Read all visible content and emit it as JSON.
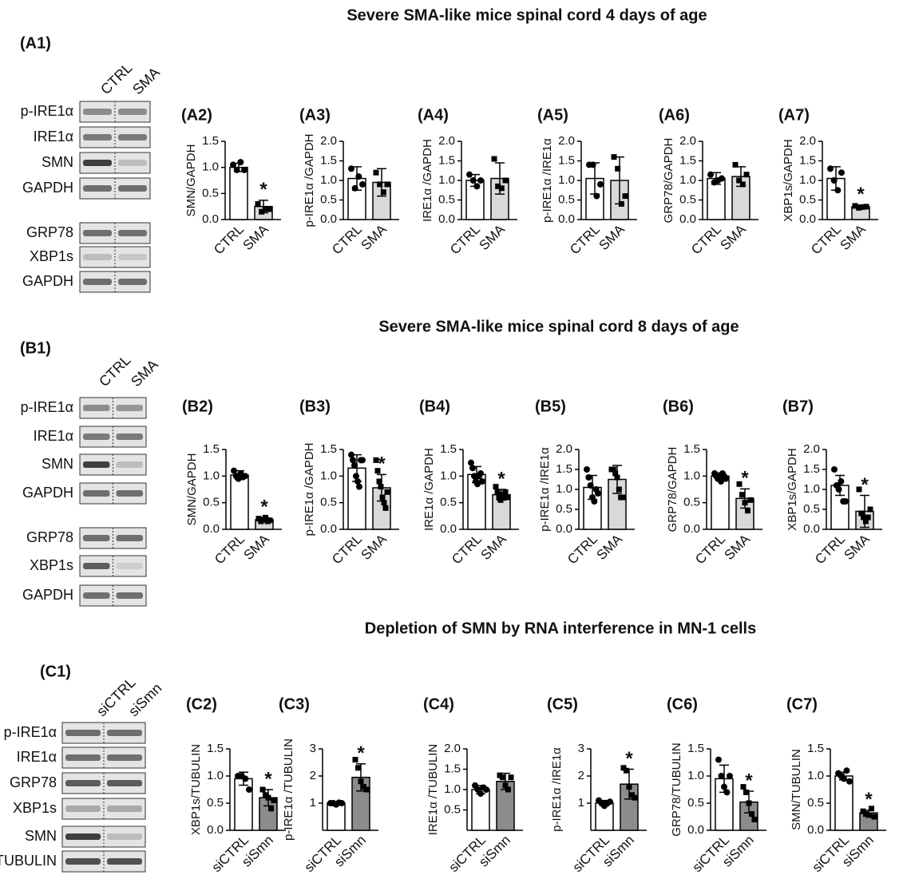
{
  "sections": [
    {
      "title": "Severe SMA-like mice spinal cord 4 days of age",
      "blot": {
        "label": "(A1)",
        "lanes": [
          "CTRL",
          "SMA"
        ],
        "rows": [
          "p-IRE1α",
          "IRE1α",
          "SMN",
          "GAPDH",
          "GRP78",
          "XBP1s",
          "GAPDH"
        ]
      }
    },
    {
      "title": "Severe SMA-like mice spinal cord 8 days of age",
      "blot": {
        "label": "(B1)",
        "lanes": [
          "CTRL",
          "SMA"
        ],
        "rows": [
          "p-IRE1α",
          "IRE1α",
          "SMN",
          "GAPDH",
          "GRP78",
          "XBP1s",
          "GAPDH"
        ]
      }
    },
    {
      "title": "Depletion of SMN by RNA interference in MN-1 cells",
      "blot": {
        "label": "(C1)",
        "lanes": [
          "siCTRL",
          "siSmn"
        ],
        "rows": [
          "p-IRE1α",
          "IRE1α",
          "GRP78",
          "XBP1s",
          "SMN",
          "TUBULIN"
        ]
      }
    }
  ],
  "chart_data": [
    {
      "type": "bar",
      "label": "(A2)",
      "ylabel": "SMN/GAPDH",
      "categories": [
        "CTRL",
        "SMA"
      ],
      "values": [
        1.0,
        0.25
      ],
      "errors": [
        0.08,
        0.12
      ],
      "points": [
        [
          1.05,
          0.95,
          1.1,
          0.95
        ],
        [
          0.3,
          0.15,
          0.2,
          0.2
        ]
      ],
      "colors": [
        "#ffffff",
        "#d9d9d9"
      ],
      "significance": [
        null,
        "*"
      ],
      "ylim": [
        0,
        1.5
      ],
      "yticks": [
        {
          "value": 0,
          "label": "0.0"
        },
        0.5,
        {
          "value": 1,
          "label": "1.0"
        },
        1.5
      ]
    },
    {
      "type": "bar",
      "label": "(A3)",
      "ylabel": "p-IRE1α /GAPDH",
      "categories": [
        "CTRL",
        "SMA"
      ],
      "values": [
        1.05,
        0.95
      ],
      "errors": [
        0.3,
        0.35
      ],
      "points": [
        [
          1.3,
          0.8,
          1.1,
          0.9
        ],
        [
          1.2,
          0.9,
          0.7,
          0.9
        ]
      ],
      "colors": [
        "#ffffff",
        "#d9d9d9"
      ],
      "ylim": [
        0,
        2
      ],
      "yticks": [
        {
          "value": 0,
          "label": "0.0"
        },
        0.5,
        {
          "value": 1,
          "label": "1.0"
        },
        1.5,
        {
          "value": 2,
          "label": "2.0"
        }
      ]
    },
    {
      "type": "bar",
      "label": "(A4)",
      "ylabel": "IRE1α /GAPDH",
      "categories": [
        "CTRL",
        "SMA"
      ],
      "values": [
        1.0,
        1.05
      ],
      "errors": [
        0.15,
        0.4
      ],
      "points": [
        [
          1.15,
          1.0,
          0.85,
          1.0
        ],
        [
          1.55,
          0.85,
          0.8,
          1.0
        ]
      ],
      "colors": [
        "#ffffff",
        "#d9d9d9"
      ],
      "ylim": [
        0,
        2
      ],
      "yticks": [
        {
          "value": 0,
          "label": "0.0"
        },
        0.5,
        {
          "value": 1,
          "label": "1.0"
        },
        1.5,
        {
          "value": 2,
          "label": "2.0"
        }
      ]
    },
    {
      "type": "bar",
      "label": "(A5)",
      "ylabel": "p-IRE1α /IRE1α",
      "categories": [
        "CTRL",
        "SMA"
      ],
      "values": [
        1.05,
        1.0
      ],
      "errors": [
        0.4,
        0.6
      ],
      "points": [
        [
          1.4,
          1.4,
          0.6,
          0.9
        ],
        [
          1.6,
          1.3,
          0.4,
          0.6
        ]
      ],
      "colors": [
        "#ffffff",
        "#d9d9d9"
      ],
      "ylim": [
        0,
        2
      ],
      "yticks": [
        {
          "value": 0,
          "label": "0.0"
        },
        0.5,
        {
          "value": 1,
          "label": "1.0"
        },
        1.5,
        {
          "value": 2,
          "label": "2.0"
        }
      ]
    },
    {
      "type": "bar",
      "label": "(A6)",
      "ylabel": "GRP78/GAPDH",
      "categories": [
        "CTRL",
        "SMA"
      ],
      "values": [
        1.05,
        1.1
      ],
      "errors": [
        0.15,
        0.25
      ],
      "points": [
        [
          1.15,
          0.95,
          1.0,
          1.05
        ],
        [
          1.4,
          1.0,
          0.9,
          1.15
        ]
      ],
      "colors": [
        "#ffffff",
        "#d9d9d9"
      ],
      "ylim": [
        0,
        2
      ],
      "yticks": [
        {
          "value": 0,
          "label": "0.0"
        },
        0.5,
        {
          "value": 1,
          "label": "1.0"
        },
        1.5,
        {
          "value": 2,
          "label": "2.0"
        }
      ]
    },
    {
      "type": "bar",
      "label": "(A7)",
      "ylabel": "XBP1s/GAPDH",
      "categories": [
        "CTRL",
        "SMA"
      ],
      "values": [
        1.05,
        0.33
      ],
      "errors": [
        0.3,
        0.04
      ],
      "points": [
        [
          1.3,
          1.0,
          0.75,
          1.2
        ],
        [
          0.35,
          0.3,
          0.32,
          0.33
        ]
      ],
      "colors": [
        "#ffffff",
        "#d9d9d9"
      ],
      "significance": [
        null,
        "*"
      ],
      "ylim": [
        0,
        2
      ],
      "yticks": [
        {
          "value": 0,
          "label": "0.0"
        },
        0.5,
        {
          "value": 1,
          "label": "1.0"
        },
        1.5,
        {
          "value": 2,
          "label": "2.0"
        }
      ]
    },
    {
      "type": "bar",
      "label": "(B2)",
      "ylabel": "SMN/GAPDH",
      "categories": [
        "CTRL",
        "SMA"
      ],
      "values": [
        1.02,
        0.18
      ],
      "errors": [
        0.08,
        0.04
      ],
      "points": [
        [
          1.1,
          1.0,
          0.95,
          1.05,
          0.98,
          1.0
        ],
        [
          0.2,
          0.15,
          0.18,
          0.22,
          0.15,
          0.17
        ]
      ],
      "colors": [
        "#ffffff",
        "#d9d9d9"
      ],
      "significance": [
        null,
        "*"
      ],
      "ylim": [
        0,
        1.5
      ],
      "yticks": [
        {
          "value": 0,
          "label": "0.0"
        },
        0.5,
        {
          "value": 1,
          "label": "1.0"
        },
        1.5
      ]
    },
    {
      "type": "bar",
      "label": "(B3)",
      "ylabel": "p-IRE1α /GAPDH",
      "categories": [
        "CTRL",
        "SMA"
      ],
      "values": [
        1.15,
        0.78
      ],
      "errors": [
        0.25,
        0.25
      ],
      "points": [
        [
          1.4,
          1.3,
          1.2,
          1.0,
          0.9,
          0.8,
          1.3,
          1.3
        ],
        [
          1.3,
          1.1,
          0.9,
          0.8,
          0.6,
          0.5,
          0.4,
          0.7
        ]
      ],
      "colors": [
        "#ffffff",
        "#d9d9d9"
      ],
      "significance": [
        null,
        "*"
      ],
      "ylim": [
        0,
        1.5
      ],
      "yticks": [
        {
          "value": 0,
          "label": "0.0"
        },
        0.5,
        {
          "value": 1,
          "label": "1.0"
        },
        1.5
      ]
    },
    {
      "type": "bar",
      "label": "(B4)",
      "ylabel": "IRE1α /GAPDH",
      "categories": [
        "CTRL",
        "SMA"
      ],
      "values": [
        1.03,
        0.65
      ],
      "errors": [
        0.15,
        0.1
      ],
      "points": [
        [
          1.25,
          1.15,
          1.0,
          0.9,
          0.85,
          1.0,
          1.05,
          0.9
        ],
        [
          0.8,
          0.7,
          0.6,
          0.55,
          0.65,
          0.6,
          0.7,
          0.6
        ]
      ],
      "colors": [
        "#ffffff",
        "#d9d9d9"
      ],
      "significance": [
        null,
        "*"
      ],
      "ylim": [
        0,
        1.5
      ],
      "yticks": [
        {
          "value": 0,
          "label": "0.0"
        },
        0.5,
        {
          "value": 1,
          "label": "1.0"
        },
        1.5
      ]
    },
    {
      "type": "bar",
      "label": "(B5)",
      "ylabel": "p-IRE1α /IRE1α",
      "categories": [
        "CTRL",
        "SMA"
      ],
      "values": [
        1.05,
        1.25
      ],
      "errors": [
        0.3,
        0.35
      ],
      "points": [
        [
          1.5,
          1.3,
          1.1,
          0.8,
          0.7,
          1.0,
          0.9
        ],
        [
          1.5,
          1.5,
          1.4,
          1.3,
          1.0,
          0.8,
          0.8
        ]
      ],
      "colors": [
        "#ffffff",
        "#d9d9d9"
      ],
      "ylim": [
        0,
        2
      ],
      "yticks": [
        {
          "value": 0,
          "label": "0.0"
        },
        0.5,
        {
          "value": 1,
          "label": "1.0"
        },
        1.5,
        {
          "value": 2,
          "label": "2.0"
        }
      ]
    },
    {
      "type": "bar",
      "label": "(B6)",
      "ylabel": "GRP78/GAPDH",
      "categories": [
        "CTRL",
        "SMA"
      ],
      "values": [
        1.0,
        0.58
      ],
      "errors": [
        0.06,
        0.18
      ],
      "points": [
        [
          1.05,
          1.0,
          0.95,
          1.0,
          0.9,
          1.05,
          1.0,
          0.95
        ],
        [
          0.85,
          0.65,
          0.5,
          0.35,
          0.55
        ]
      ],
      "colors": [
        "#ffffff",
        "#d9d9d9"
      ],
      "significance": [
        null,
        "*"
      ],
      "ylim": [
        0,
        1.5
      ],
      "yticks": [
        {
          "value": 0,
          "label": "0.0"
        },
        0.5,
        {
          "value": 1,
          "label": "1.0"
        },
        1.5
      ]
    },
    {
      "type": "bar",
      "label": "(B7)",
      "ylabel": "XBP1s/GAPDH",
      "categories": [
        "CTRL",
        "SMA"
      ],
      "values": [
        1.1,
        0.45
      ],
      "errors": [
        0.25,
        0.4
      ],
      "points": [
        [
          1.5,
          1.1,
          1.0,
          1.2,
          0.7,
          0.7
        ],
        [
          1.0,
          0.4,
          0.3,
          0.2,
          0.3,
          0.5
        ]
      ],
      "colors": [
        "#ffffff",
        "#d9d9d9"
      ],
      "significance": [
        null,
        "*"
      ],
      "ylim": [
        0,
        2
      ],
      "yticks": [
        {
          "value": 0,
          "label": "0.0"
        },
        0.5,
        {
          "value": 1,
          "label": "1.0"
        },
        1.5,
        {
          "value": 2,
          "label": "2.0"
        }
      ]
    },
    {
      "type": "bar",
      "label": "(C2)",
      "ylabel": "XBP1s/TUBULIN",
      "categories": [
        "siCTRL",
        "siSmn"
      ],
      "values": [
        0.95,
        0.6
      ],
      "errors": [
        0.12,
        0.15
      ],
      "points": [
        [
          1.0,
          1.0,
          0.95,
          0.75
        ],
        [
          0.75,
          0.65,
          0.6,
          0.4,
          0.55
        ]
      ],
      "colors": [
        "#ffffff",
        "#8c8c8c"
      ],
      "significance": [
        null,
        "*"
      ],
      "ylim": [
        0,
        1.5
      ],
      "yticks": [
        {
          "value": 0,
          "label": "0.0"
        },
        0.5,
        {
          "value": 1,
          "label": "1.0"
        },
        1.5
      ]
    },
    {
      "type": "bar",
      "label": "(C3)",
      "ylabel": "p-IRE1α /TUBULIN",
      "categories": [
        "siCTRL",
        "siSmn"
      ],
      "values": [
        1.0,
        1.95
      ],
      "errors": [
        0.04,
        0.5
      ],
      "points": [
        [
          1.0,
          1.0,
          0.95,
          1.02,
          1.0
        ],
        [
          2.6,
          2.3,
          1.8,
          1.6,
          1.5
        ]
      ],
      "colors": [
        "#ffffff",
        "#8c8c8c"
      ],
      "significance": [
        null,
        "*"
      ],
      "ylim": [
        0,
        3
      ],
      "yticks": [
        1,
        2,
        3
      ]
    },
    {
      "type": "bar",
      "label": "(C4)",
      "ylabel": "IRE1α /TUBULIN",
      "categories": [
        "siCTRL",
        "siSmn"
      ],
      "values": [
        1.0,
        1.2
      ],
      "errors": [
        0.1,
        0.2
      ],
      "points": [
        [
          1.1,
          1.0,
          0.9,
          1.05,
          1.0
        ],
        [
          1.35,
          1.3,
          1.1,
          1.0,
          1.3
        ]
      ],
      "colors": [
        "#ffffff",
        "#8c8c8c"
      ],
      "ylim": [
        0,
        2
      ],
      "yticks": [
        0.5,
        {
          "value": 1,
          "label": "1.0"
        },
        1.5,
        {
          "value": 2,
          "label": "2.0"
        }
      ]
    },
    {
      "type": "bar",
      "label": "(C5)",
      "ylabel": "p-IRE1α /IRE1α",
      "categories": [
        "siCTRL",
        "siSmn"
      ],
      "values": [
        1.0,
        1.7
      ],
      "errors": [
        0.1,
        0.55
      ],
      "points": [
        [
          1.1,
          1.0,
          0.9,
          1.0,
          1.05
        ],
        [
          2.3,
          2.2,
          1.6,
          1.3,
          1.2
        ]
      ],
      "colors": [
        "#ffffff",
        "#8c8c8c"
      ],
      "significance": [
        null,
        "*"
      ],
      "ylim": [
        0,
        3
      ],
      "yticks": [
        1,
        2,
        3
      ]
    },
    {
      "type": "bar",
      "label": "(C6)",
      "ylabel": "GRP78/TUBULIN",
      "categories": [
        "siCTRL",
        "siSmn"
      ],
      "values": [
        0.95,
        0.52
      ],
      "errors": [
        0.25,
        0.2
      ],
      "points": [
        [
          1.3,
          1.0,
          0.8,
          0.7,
          1.0
        ],
        [
          0.8,
          0.7,
          0.5,
          0.3,
          0.2
        ]
      ],
      "colors": [
        "#ffffff",
        "#8c8c8c"
      ],
      "significance": [
        null,
        "*"
      ],
      "ylim": [
        0,
        1.5
      ],
      "yticks": [
        {
          "value": 0,
          "label": "0.0"
        },
        0.5,
        {
          "value": 1,
          "label": "1.0"
        },
        1.5
      ]
    },
    {
      "type": "bar",
      "label": "(C7)",
      "ylabel": "SMN/TUBULIN",
      "categories": [
        "siCTRL",
        "siSmn"
      ],
      "values": [
        1.0,
        0.32
      ],
      "errors": [
        0.07,
        0.05
      ],
      "points": [
        [
          1.05,
          1.0,
          0.95,
          1.1,
          0.9
        ],
        [
          0.35,
          0.3,
          0.28,
          0.4,
          0.25
        ]
      ],
      "colors": [
        "#ffffff",
        "#8c8c8c"
      ],
      "significance": [
        null,
        "*"
      ],
      "ylim": [
        0,
        1.5
      ],
      "yticks": [
        {
          "value": 0,
          "label": "0.0"
        },
        0.5,
        {
          "value": 1,
          "label": "1.0"
        },
        1.5
      ]
    }
  ]
}
